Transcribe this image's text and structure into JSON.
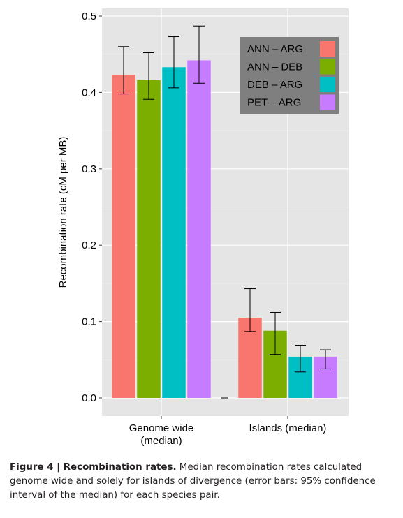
{
  "chart_data": {
    "type": "bar",
    "categories": [
      "Genome wide\n(median)",
      "Islands (median)"
    ],
    "ylabel": "Recombination rate (cM per MB)",
    "ylim": [
      0,
      0.5
    ],
    "yticks": [
      "0.0",
      "0.1",
      "0.2",
      "0.3",
      "0.4",
      "0.5"
    ],
    "grid": true,
    "legend_position": "top-right",
    "series": [
      {
        "name": "ANN – ARG",
        "color": "#F8766D",
        "values": [
          0.423,
          0.105
        ],
        "err_low": [
          0.398,
          0.087
        ],
        "err_high": [
          0.46,
          0.143
        ]
      },
      {
        "name": "ANN – DEB",
        "color": "#7CAE00",
        "values": [
          0.416,
          0.088
        ],
        "err_low": [
          0.391,
          0.057
        ],
        "err_high": [
          0.452,
          0.112
        ]
      },
      {
        "name": "DEB – ARG",
        "color": "#00BFC4",
        "values": [
          0.433,
          0.054
        ],
        "err_low": [
          0.406,
          0.034
        ],
        "err_high": [
          0.473,
          0.069
        ]
      },
      {
        "name": "PET – ARG",
        "color": "#C77CFF",
        "values": [
          0.442,
          0.054
        ],
        "err_low": [
          0.412,
          0.038
        ],
        "err_high": [
          0.487,
          0.063
        ]
      }
    ]
  },
  "caption": {
    "label": "Figure 4 | Recombination rates.",
    "text": " Median recombination rates calculated genome wide and solely for islands of divergence (error bars: 95% confidence interval of the median) for each species pair."
  }
}
